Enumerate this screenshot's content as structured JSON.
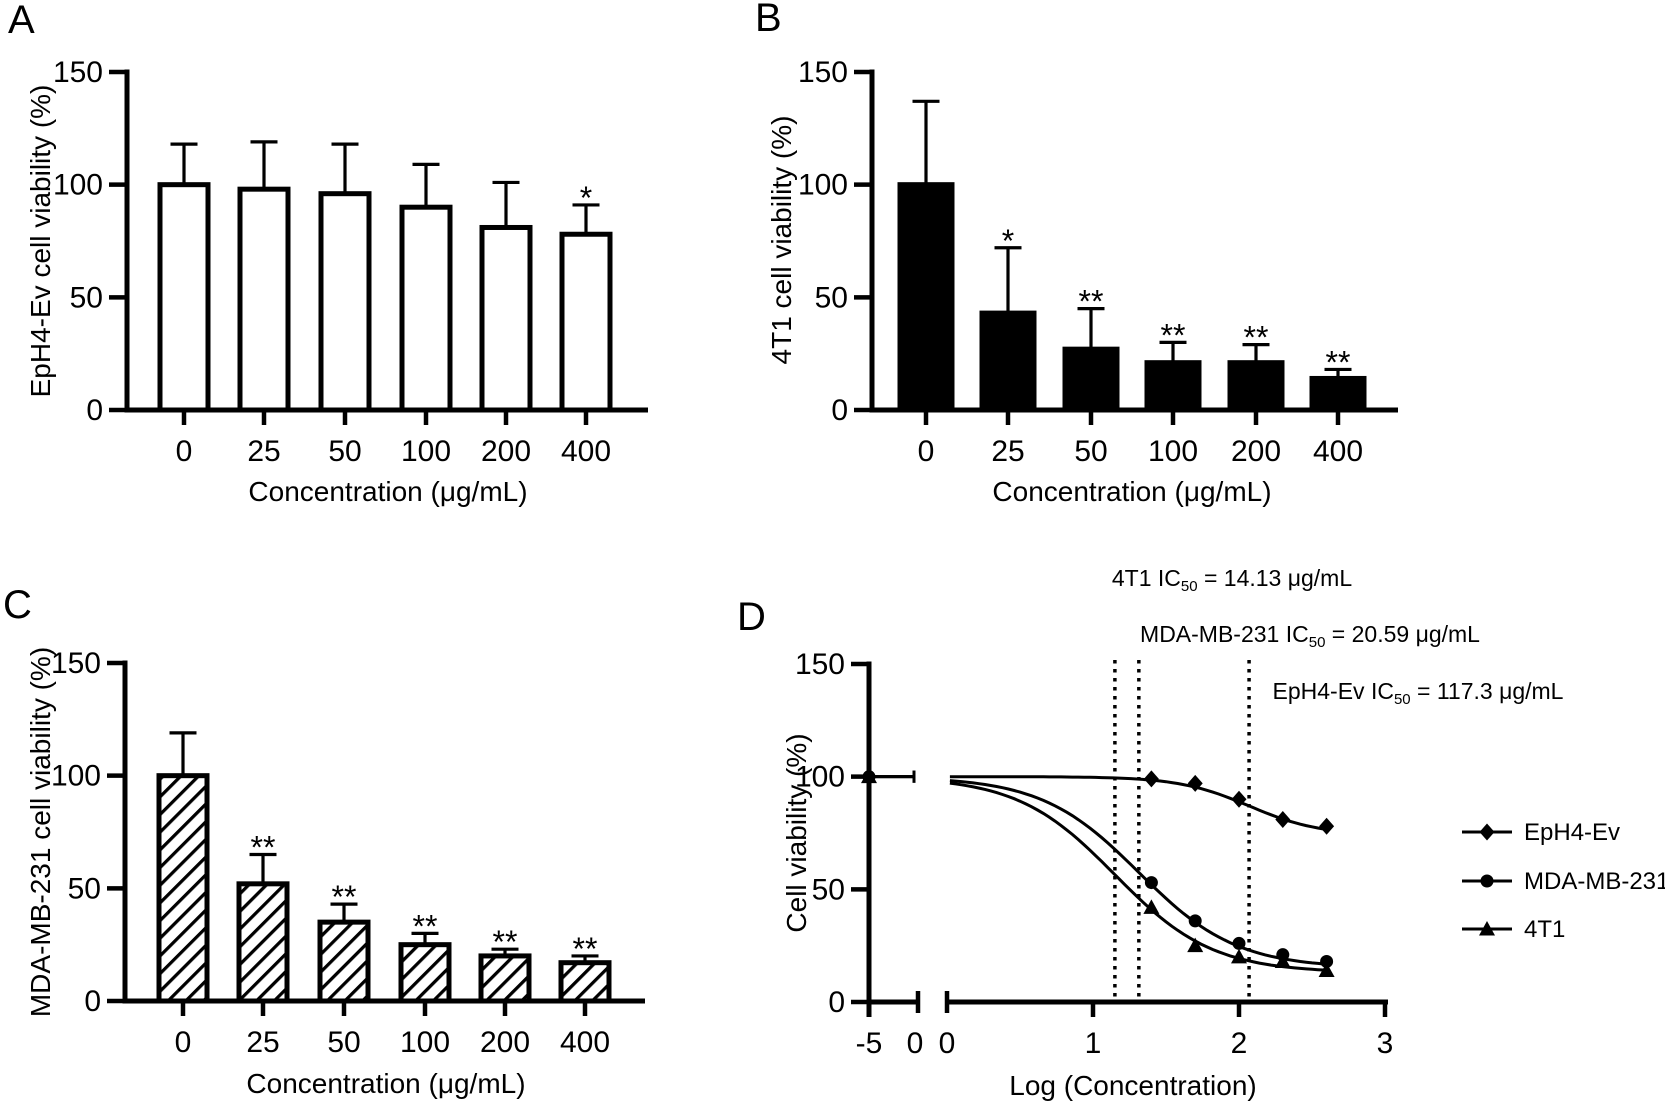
{
  "figure": {
    "background": "#ffffff",
    "ink": "#000000"
  },
  "chart_data": [
    {
      "type": "bar",
      "panel_label": "A",
      "ylabel": "EpH4-Ev cell viability (%)",
      "xlabel": "Concentration (μg/mL)",
      "categories": [
        "0",
        "25",
        "50",
        "100",
        "200",
        "400"
      ],
      "values": [
        100,
        98,
        96,
        90,
        81,
        78
      ],
      "errors_upper": [
        18,
        21,
        22,
        19,
        20,
        13
      ],
      "significance": [
        "",
        "",
        "",
        "",
        "",
        "*"
      ],
      "y_ticks": [
        0,
        50,
        100,
        150
      ],
      "ylim": [
        0,
        150
      ],
      "bar_style": "open",
      "grid": false
    },
    {
      "type": "bar",
      "panel_label": "B",
      "ylabel": "4T1 cell viability (%)",
      "xlabel": "Concentration (μg/mL)",
      "categories": [
        "0",
        "25",
        "50",
        "100",
        "200",
        "400"
      ],
      "values": [
        100,
        43,
        27,
        21,
        21,
        14
      ],
      "errors_upper": [
        37,
        29,
        18,
        9,
        8,
        4
      ],
      "significance": [
        "",
        "*",
        "**",
        "**",
        "**",
        "**"
      ],
      "y_ticks": [
        0,
        50,
        100,
        150
      ],
      "ylim": [
        0,
        150
      ],
      "bar_style": "solid",
      "grid": false
    },
    {
      "type": "bar",
      "panel_label": "C",
      "ylabel": "MDA-MB-231 cell viability (%)",
      "xlabel": "Concentration (μg/mL)",
      "categories": [
        "0",
        "25",
        "50",
        "100",
        "200",
        "400"
      ],
      "values": [
        100,
        52,
        35,
        25,
        20,
        17
      ],
      "errors_upper": [
        19,
        13,
        8,
        5,
        3,
        3
      ],
      "significance": [
        "",
        "**",
        "**",
        "**",
        "**",
        "**"
      ],
      "y_ticks": [
        0,
        50,
        100,
        150
      ],
      "ylim": [
        0,
        150
      ],
      "bar_style": "hatched",
      "grid": false
    },
    {
      "type": "line",
      "panel_label": "D",
      "ylabel": "Cell viability (%)",
      "xlabel": "Log (Concentration)",
      "y_ticks": [
        0,
        50,
        100,
        150
      ],
      "ylim": [
        0,
        150
      ],
      "x_axis": {
        "broken": true,
        "segment1_ticks": [
          "-5",
          "0"
        ],
        "segment2_ticks": [
          "0",
          "1",
          "2",
          "3"
        ],
        "xlim_segment2": [
          0,
          3
        ]
      },
      "series": [
        {
          "name": "EpH4-Ev",
          "marker": "diamond",
          "x": [
            1.4,
            1.7,
            2.0,
            2.3,
            2.6
          ],
          "y": [
            99,
            97,
            90,
            81,
            78
          ],
          "zero_point": {
            "x": -5,
            "y": 100
          },
          "fit": {
            "top": 100,
            "bottom": 74,
            "log_ic50": 2.069,
            "hill": 1.8
          }
        },
        {
          "name": "MDA-MB-231",
          "marker": "circle",
          "x": [
            1.4,
            1.7,
            2.0,
            2.3,
            2.6
          ],
          "y": [
            53,
            36,
            26,
            21,
            18
          ],
          "zero_point": {
            "x": -5,
            "y": 100
          },
          "fit": {
            "top": 100,
            "bottom": 15,
            "log_ic50": 1.314,
            "hill": 1.3
          }
        },
        {
          "name": "4T1",
          "marker": "triangle",
          "x": [
            1.4,
            1.7,
            2.0,
            2.3,
            2.6
          ],
          "y": [
            42,
            25,
            20,
            18,
            14
          ],
          "zero_point": {
            "x": -5,
            "y": 100
          },
          "fit": {
            "top": 100,
            "bottom": 13,
            "log_ic50": 1.15,
            "hill": 1.3
          }
        }
      ],
      "ic50_reference_lines_log_x": [
        1.15,
        1.314,
        2.069
      ],
      "annotations": [
        {
          "prefix": "4T1 IC",
          "sub": "50",
          "suffix": " = 14.13 μg/mL"
        },
        {
          "prefix": "MDA-MB-231 IC",
          "sub": "50",
          "suffix": " = 20.59 μg/mL"
        },
        {
          "prefix": "EpH4-Ev IC",
          "sub": "50",
          "suffix": " = 117.3 μg/mL"
        }
      ],
      "legend": {
        "position": "right",
        "entries": [
          {
            "label": "EpH4-Ev",
            "marker": "diamond"
          },
          {
            "label": "MDA-MB-231",
            "marker": "circle"
          },
          {
            "label": "4T1",
            "marker": "triangle"
          }
        ]
      }
    }
  ]
}
